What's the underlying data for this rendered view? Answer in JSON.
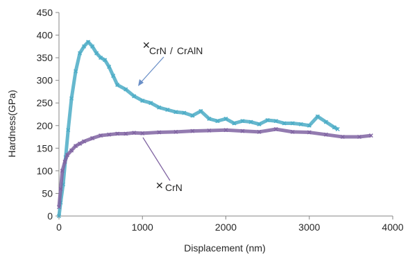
{
  "chart_data": {
    "type": "scatter",
    "xlabel": "Displacement (nm)",
    "ylabel": "Hardness(GPa)",
    "xlim": [
      0,
      4000
    ],
    "ylim": [
      0,
      450
    ],
    "x_ticks": [
      "0",
      "1000",
      "2000",
      "3000",
      "4000"
    ],
    "y_ticks": [
      "0",
      "50",
      "100",
      "150",
      "200",
      "250",
      "300",
      "350",
      "400",
      "450"
    ],
    "grid": false,
    "legend": "none",
    "series": [
      {
        "name": "CrN/CrAlN",
        "color": "#4bacc6",
        "marker": "x",
        "x": [
          0,
          20,
          50,
          80,
          110,
          150,
          200,
          250,
          300,
          350,
          400,
          450,
          500,
          550,
          600,
          650,
          700,
          800,
          900,
          1000,
          1100,
          1200,
          1300,
          1400,
          1500,
          1600,
          1700,
          1800,
          1900,
          2000,
          2100,
          2200,
          2300,
          2400,
          2500,
          2600,
          2700,
          2800,
          2900,
          3000,
          3100,
          3200,
          3300,
          3340
        ],
        "y": [
          0,
          30,
          70,
          130,
          190,
          260,
          320,
          360,
          375,
          385,
          375,
          360,
          350,
          345,
          330,
          310,
          290,
          280,
          265,
          255,
          250,
          240,
          235,
          230,
          228,
          222,
          232,
          215,
          210,
          215,
          205,
          210,
          208,
          203,
          212,
          210,
          205,
          205,
          203,
          200,
          220,
          208,
          196,
          192
        ]
      },
      {
        "name": "CrN",
        "color": "#8064a2",
        "marker": "x",
        "x": [
          0,
          20,
          40,
          70,
          100,
          150,
          200,
          250,
          300,
          400,
          500,
          600,
          700,
          800,
          900,
          1000,
          1200,
          1400,
          1600,
          1800,
          2000,
          2200,
          2400,
          2600,
          2800,
          3000,
          3200,
          3400,
          3600,
          3740
        ],
        "y": [
          20,
          60,
          100,
          120,
          135,
          145,
          155,
          160,
          165,
          172,
          178,
          180,
          182,
          182,
          184,
          183,
          185,
          186,
          188,
          189,
          190,
          188,
          186,
          192,
          186,
          185,
          180,
          175,
          175,
          178
        ]
      }
    ],
    "annotations": [
      {
        "label": "CrN",
        "target": "CrN/CrAlN"
      },
      {
        "label": "CrAlN",
        "target": "CrN/CrAlN"
      },
      {
        "label": "CrN",
        "target": "CrN"
      }
    ]
  }
}
